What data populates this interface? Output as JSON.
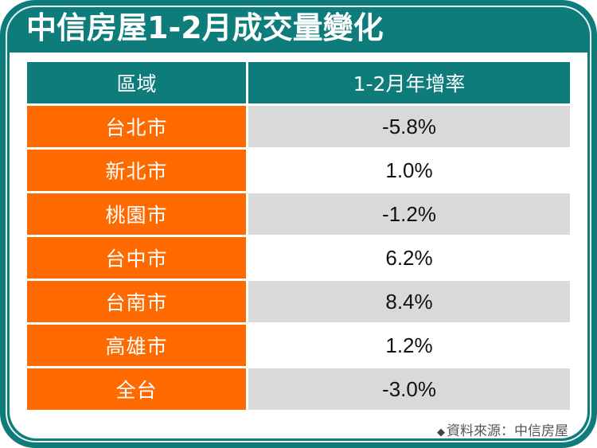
{
  "title": "中信房屋1-2月成交量變化",
  "table": {
    "headers": [
      "區域",
      "1-2月年增率"
    ],
    "rows": [
      {
        "region": "台北市",
        "value": "-5.8%"
      },
      {
        "region": "新北市",
        "value": "1.0%"
      },
      {
        "region": "桃園市",
        "value": "-1.2%"
      },
      {
        "region": "台中市",
        "value": "6.2%"
      },
      {
        "region": "台南市",
        "value": "8.4%"
      },
      {
        "region": "高雄市",
        "value": "1.2%"
      },
      {
        "region": "全台",
        "value": "-3.0%"
      }
    ]
  },
  "source": {
    "bullet": "◆",
    "text": "資料來源：中信房屋"
  },
  "colors": {
    "frame_teal": "#0e7c7b",
    "region_orange": "#ff6a00",
    "row_alt_gray": "#d9d9d9",
    "text_dark": "#111111"
  }
}
